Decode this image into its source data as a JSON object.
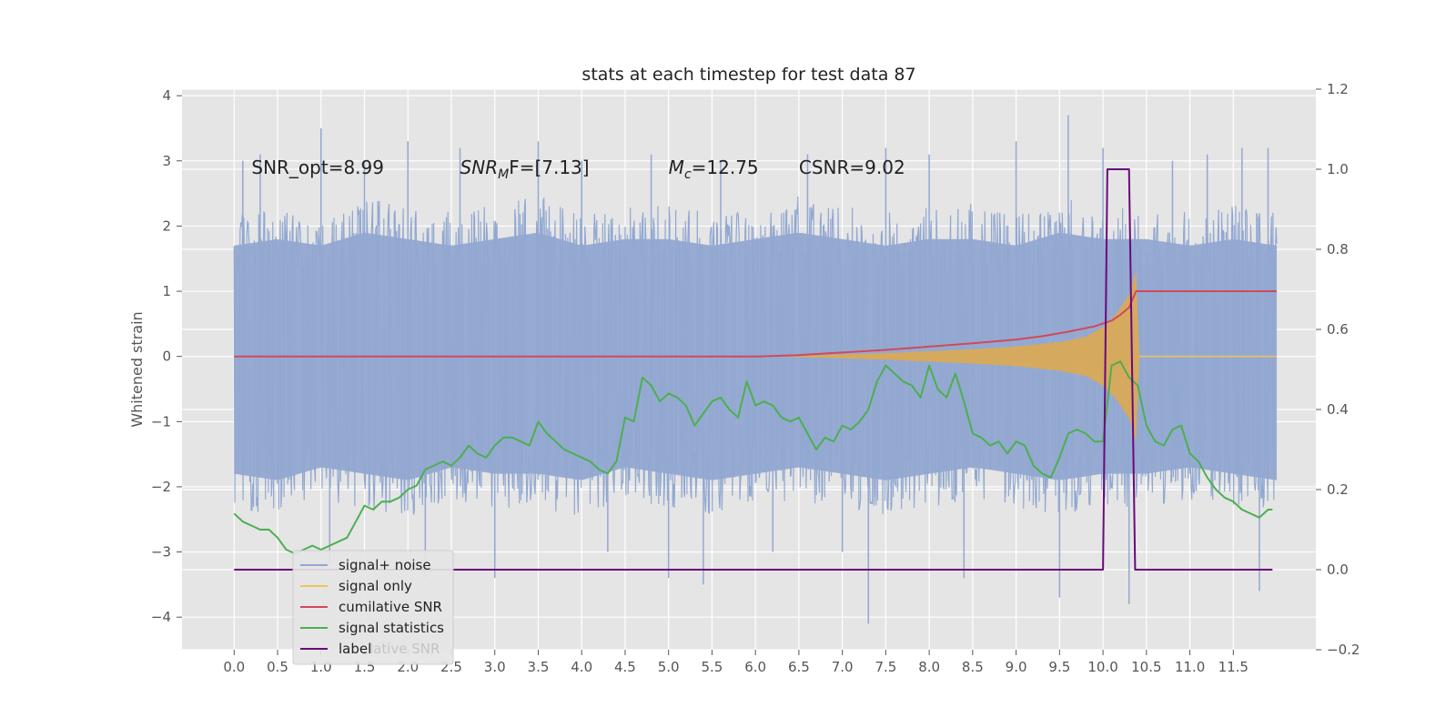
{
  "chart_data": {
    "type": "line",
    "title": "stats at each timestep for test data 87",
    "ylabel": "Whitened strain",
    "xlabel": "",
    "xlim": [
      -0.6,
      12.45
    ],
    "ylim": [
      -4.5,
      4.1
    ],
    "y2lim": [
      -0.2,
      1.2
    ],
    "grid": true,
    "legend_position": "lower-left",
    "x_ticks": [
      "0.0",
      "0.5",
      "1.0",
      "1.5",
      "2.0",
      "2.5",
      "3.0",
      "3.5",
      "4.0",
      "4.5",
      "5.0",
      "5.5",
      "6.0",
      "6.5",
      "7.0",
      "7.5",
      "8.0",
      "8.5",
      "9.0",
      "9.5",
      "10.0",
      "10.5",
      "11.0",
      "11.5"
    ],
    "y_ticks": [
      "4",
      "3",
      "2",
      "1",
      "0",
      "−1",
      "−2",
      "−3",
      "−4"
    ],
    "y2_ticks": [
      "1.2",
      "1.0",
      "0.8",
      "0.6",
      "0.4",
      "0.2",
      "0.0",
      "−0.2"
    ],
    "annotations": [
      {
        "prefix": "SNR_opt=8.99",
        "math": "",
        "sub": "",
        "suffix": "",
        "x": 0.2,
        "y": 2.9
      },
      {
        "prefix": "",
        "math": "SNR",
        "sub": "M",
        "suffix": "F=[7.13]",
        "x": 2.6,
        "y": 2.9
      },
      {
        "prefix": "",
        "math": "M",
        "sub": "c",
        "suffix": "=12.75",
        "x": 5.0,
        "y": 2.9
      },
      {
        "prefix": "CSNR=9.02",
        "math": "",
        "sub": "",
        "suffix": "",
        "x": 6.5,
        "y": 2.9
      }
    ],
    "legend": [
      {
        "label": "signal+ noise",
        "color": "#92a8d1"
      },
      {
        "label": "signal only",
        "color": "#f0c35a"
      },
      {
        "label": "cumilative SNR",
        "color": "#d1495b"
      },
      {
        "label": "signal statistics",
        "color": "#4caf50"
      },
      {
        "label": "label",
        "color": "#6a0a7a"
      }
    ],
    "legend_overlap_text": "lative SNR",
    "series": [
      {
        "name": "signal+ noise",
        "axis": "left",
        "color": "#92a8d1",
        "x_range": [
          0.0,
          12.0
        ],
        "envelope_upper": [
          1.7,
          1.8,
          1.7,
          1.9,
          1.8,
          1.7,
          1.8,
          1.9,
          1.7,
          1.8,
          1.8,
          1.7,
          1.8,
          1.9,
          1.8,
          1.7,
          1.8,
          1.8,
          1.7,
          1.9,
          1.8,
          1.8,
          1.7,
          1.8,
          1.7
        ],
        "envelope_lower": [
          -1.8,
          -1.9,
          -1.7,
          -1.8,
          -1.9,
          -1.7,
          -1.8,
          -1.8,
          -1.9,
          -1.7,
          -1.8,
          -1.9,
          -1.8,
          -1.7,
          -1.8,
          -1.9,
          -1.8,
          -1.7,
          -1.8,
          -1.9,
          -1.8,
          -1.8,
          -1.7,
          -1.8,
          -1.9
        ],
        "spikes": [
          [
            0.1,
            3.0
          ],
          [
            0.3,
            3.1
          ],
          [
            1.0,
            3.5
          ],
          [
            1.1,
            -3.2
          ],
          [
            1.5,
            3.0
          ],
          [
            2.0,
            3.3
          ],
          [
            2.2,
            -3.4
          ],
          [
            2.6,
            3.2
          ],
          [
            3.0,
            -3.4
          ],
          [
            3.5,
            3.3
          ],
          [
            4.0,
            3.0
          ],
          [
            4.3,
            -3.0
          ],
          [
            4.8,
            3.1
          ],
          [
            5.0,
            -3.4
          ],
          [
            5.4,
            -3.5
          ],
          [
            5.6,
            3.0
          ],
          [
            6.0,
            1.2
          ],
          [
            6.2,
            -3.0
          ],
          [
            6.6,
            3.1
          ],
          [
            7.0,
            -3.0
          ],
          [
            7.3,
            -4.1
          ],
          [
            7.5,
            3.2
          ],
          [
            8.0,
            3.1
          ],
          [
            8.4,
            -3.4
          ],
          [
            9.0,
            3.3
          ],
          [
            9.6,
            3.7
          ],
          [
            9.5,
            -3.7
          ],
          [
            10.0,
            3.2
          ],
          [
            10.3,
            -3.8
          ],
          [
            10.8,
            3.0
          ],
          [
            11.2,
            3.1
          ],
          [
            11.6,
            3.2
          ],
          [
            11.8,
            -3.6
          ],
          [
            11.9,
            3.2
          ]
        ]
      },
      {
        "name": "signal only",
        "axis": "left",
        "color": "#e0a94a",
        "x": [
          6.0,
          6.5,
          7.0,
          7.5,
          8.0,
          8.5,
          9.0,
          9.5,
          9.8,
          10.0,
          10.15,
          10.3,
          10.38,
          10.42
        ],
        "amplitude": [
          0.0,
          0.01,
          0.03,
          0.05,
          0.08,
          0.11,
          0.15,
          0.22,
          0.3,
          0.45,
          0.65,
          0.95,
          1.3,
          0.0
        ]
      },
      {
        "name": "cumilative SNR",
        "axis": "left",
        "color": "#d1495b",
        "x": [
          0.0,
          6.0,
          6.5,
          7.0,
          7.5,
          8.0,
          8.5,
          9.0,
          9.3,
          9.6,
          9.9,
          10.1,
          10.2,
          10.3,
          10.38,
          12.0
        ],
        "y": [
          0.0,
          0.0,
          0.02,
          0.06,
          0.1,
          0.15,
          0.2,
          0.26,
          0.31,
          0.38,
          0.46,
          0.55,
          0.64,
          0.75,
          1.0,
          1.0
        ]
      },
      {
        "name": "signal statistics",
        "axis": "right",
        "color": "#4caf50",
        "x": [
          0.0,
          0.1,
          0.2,
          0.3,
          0.4,
          0.5,
          0.6,
          0.7,
          0.8,
          0.9,
          1.0,
          1.1,
          1.2,
          1.3,
          1.4,
          1.5,
          1.6,
          1.7,
          1.8,
          1.9,
          2.0,
          2.1,
          2.2,
          2.3,
          2.4,
          2.5,
          2.6,
          2.7,
          2.8,
          2.9,
          3.0,
          3.1,
          3.2,
          3.3,
          3.4,
          3.5,
          3.6,
          3.7,
          3.8,
          3.9,
          4.0,
          4.1,
          4.2,
          4.3,
          4.4,
          4.5,
          4.6,
          4.7,
          4.8,
          4.9,
          5.0,
          5.1,
          5.2,
          5.3,
          5.4,
          5.5,
          5.6,
          5.7,
          5.8,
          5.9,
          6.0,
          6.1,
          6.2,
          6.3,
          6.4,
          6.5,
          6.6,
          6.7,
          6.8,
          6.9,
          7.0,
          7.1,
          7.2,
          7.3,
          7.4,
          7.5,
          7.6,
          7.7,
          7.8,
          7.9,
          8.0,
          8.1,
          8.2,
          8.3,
          8.4,
          8.5,
          8.6,
          8.7,
          8.8,
          8.9,
          9.0,
          9.1,
          9.2,
          9.3,
          9.4,
          9.5,
          9.6,
          9.7,
          9.8,
          9.9,
          10.0,
          10.1,
          10.2,
          10.3,
          10.4,
          10.5,
          10.6,
          10.7,
          10.8,
          10.9,
          11.0,
          11.1,
          11.2,
          11.3,
          11.4,
          11.5,
          11.6,
          11.7,
          11.8,
          11.9,
          11.95
        ],
        "y": [
          0.14,
          0.12,
          0.11,
          0.1,
          0.1,
          0.08,
          0.05,
          0.04,
          0.05,
          0.06,
          0.05,
          0.06,
          0.07,
          0.08,
          0.12,
          0.16,
          0.15,
          0.17,
          0.17,
          0.18,
          0.2,
          0.21,
          0.25,
          0.26,
          0.27,
          0.26,
          0.28,
          0.31,
          0.29,
          0.28,
          0.31,
          0.33,
          0.33,
          0.32,
          0.31,
          0.37,
          0.34,
          0.32,
          0.3,
          0.29,
          0.28,
          0.27,
          0.25,
          0.24,
          0.27,
          0.38,
          0.37,
          0.48,
          0.46,
          0.42,
          0.44,
          0.43,
          0.41,
          0.36,
          0.39,
          0.42,
          0.43,
          0.4,
          0.38,
          0.47,
          0.41,
          0.42,
          0.41,
          0.38,
          0.37,
          0.38,
          0.34,
          0.3,
          0.33,
          0.32,
          0.36,
          0.35,
          0.37,
          0.4,
          0.47,
          0.51,
          0.49,
          0.47,
          0.46,
          0.43,
          0.51,
          0.45,
          0.43,
          0.49,
          0.42,
          0.34,
          0.33,
          0.31,
          0.32,
          0.29,
          0.32,
          0.31,
          0.26,
          0.24,
          0.23,
          0.28,
          0.34,
          0.35,
          0.34,
          0.32,
          0.32,
          0.51,
          0.52,
          0.48,
          0.46,
          0.36,
          0.32,
          0.31,
          0.35,
          0.36,
          0.29,
          0.27,
          0.23,
          0.2,
          0.18,
          0.17,
          0.15,
          0.14,
          0.13,
          0.15,
          0.15
        ]
      },
      {
        "name": "label",
        "axis": "right",
        "color": "#6a0a7a",
        "x": [
          0.0,
          10.0,
          10.05,
          10.3,
          10.37,
          11.95
        ],
        "y": [
          0.0,
          0.0,
          1.0,
          1.0,
          0.0,
          0.0
        ]
      }
    ]
  }
}
